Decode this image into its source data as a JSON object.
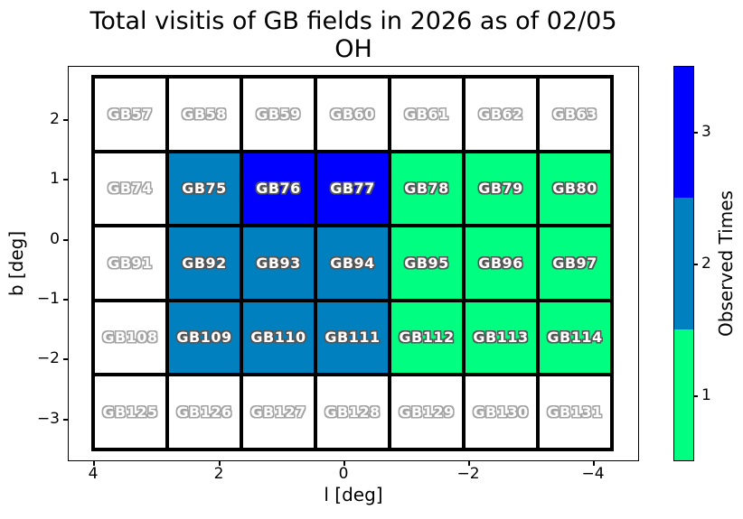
{
  "title": {
    "line1": "Total visitis of GB fields in 2026 as of 02/05",
    "line2": "OH"
  },
  "axes": {
    "xlabel": "l [deg]",
    "ylabel": "b [deg]",
    "x_ticks": [
      "4",
      "2",
      "0",
      "−2",
      "−4"
    ],
    "y_ticks": [
      "2",
      "1",
      "0",
      "−1",
      "−2",
      "−3"
    ]
  },
  "colorbar": {
    "label": "Observed Times",
    "tick_labels": [
      "3",
      "2",
      "1"
    ],
    "band_colors_top_to_bottom": [
      "#0000ff",
      "#0080bf",
      "#00ff80"
    ]
  },
  "chart_data": {
    "type": "heatmap",
    "title": "Total visitis of GB fields in 2026 as of 02/05 OH",
    "xlabel": "l [deg]",
    "ylabel": "b [deg]",
    "x_tick_values": [
      4,
      2,
      0,
      -2,
      -4
    ],
    "y_tick_values": [
      2,
      1,
      0,
      -1,
      -2,
      -3
    ],
    "x_axis_inverted": true,
    "legend_position": "right-colorbar",
    "colorbar_label": "Observed Times",
    "colorbar_ticks": [
      1,
      2,
      3
    ],
    "value_colors": {
      "0": "#ffffff",
      "1": "#00ff80",
      "2": "#0080bf",
      "3": "#0000ff"
    },
    "rows": [
      {
        "cells": [
          {
            "name": "GB57",
            "observed": 0
          },
          {
            "name": "GB58",
            "observed": 0
          },
          {
            "name": "GB59",
            "observed": 0
          },
          {
            "name": "GB60",
            "observed": 0
          },
          {
            "name": "GB61",
            "observed": 0
          },
          {
            "name": "GB62",
            "observed": 0
          },
          {
            "name": "GB63",
            "observed": 0
          }
        ]
      },
      {
        "cells": [
          {
            "name": "GB74",
            "observed": 0
          },
          {
            "name": "GB75",
            "observed": 2
          },
          {
            "name": "GB76",
            "observed": 3
          },
          {
            "name": "GB77",
            "observed": 3
          },
          {
            "name": "GB78",
            "observed": 1
          },
          {
            "name": "GB79",
            "observed": 1
          },
          {
            "name": "GB80",
            "observed": 1
          }
        ]
      },
      {
        "cells": [
          {
            "name": "GB91",
            "observed": 0
          },
          {
            "name": "GB92",
            "observed": 2
          },
          {
            "name": "GB93",
            "observed": 2
          },
          {
            "name": "GB94",
            "observed": 2
          },
          {
            "name": "GB95",
            "observed": 1
          },
          {
            "name": "GB96",
            "observed": 1
          },
          {
            "name": "GB97",
            "observed": 1
          }
        ]
      },
      {
        "cells": [
          {
            "name": "GB108",
            "observed": 0
          },
          {
            "name": "GB109",
            "observed": 2
          },
          {
            "name": "GB110",
            "observed": 2
          },
          {
            "name": "GB111",
            "observed": 2
          },
          {
            "name": "GB112",
            "observed": 1
          },
          {
            "name": "GB113",
            "observed": 1
          },
          {
            "name": "GB114",
            "observed": 1
          }
        ]
      },
      {
        "cells": [
          {
            "name": "GB125",
            "observed": 0
          },
          {
            "name": "GB126",
            "observed": 0
          },
          {
            "name": "GB127",
            "observed": 0
          },
          {
            "name": "GB128",
            "observed": 0
          },
          {
            "name": "GB129",
            "observed": 0
          },
          {
            "name": "GB130",
            "observed": 0
          },
          {
            "name": "GB131",
            "observed": 0
          }
        ]
      }
    ]
  }
}
